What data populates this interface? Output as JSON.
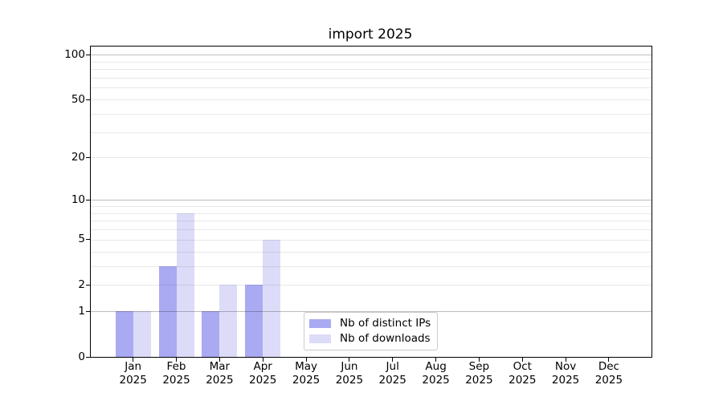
{
  "title": "import 2025",
  "colors": {
    "distinct_ips_bar": "#aaaaf2",
    "downloads_bar": "#dcdcf8",
    "major_gridline": "#bdbdbd",
    "minor_gridline": "#e8e8e8",
    "axis_line": "#000000",
    "legend_border": "#cccccc",
    "background": "#ffffff"
  },
  "legend": {
    "items": [
      {
        "label": "Nb of distinct IPs"
      },
      {
        "label": "Nb of downloads"
      }
    ]
  },
  "chart_data": {
    "type": "bar",
    "title": "import 2025",
    "categories": [
      "Jan 2025",
      "Feb 2025",
      "Mar 2025",
      "Apr 2025",
      "May 2025",
      "Jun 2025",
      "Jul 2025",
      "Aug 2025",
      "Sep 2025",
      "Oct 2025",
      "Nov 2025",
      "Dec 2025"
    ],
    "x_axis": {
      "months": [
        "Jan",
        "Feb",
        "Mar",
        "Apr",
        "May",
        "Jun",
        "Jul",
        "Aug",
        "Sep",
        "Oct",
        "Nov",
        "Dec"
      ],
      "year": "2025"
    },
    "series": [
      {
        "name": "Nb of distinct IPs",
        "color": "#aaaaf2",
        "values": [
          1,
          3,
          1,
          2,
          0,
          0,
          0,
          0,
          0,
          0,
          0,
          0
        ]
      },
      {
        "name": "Nb of downloads",
        "color": "#dcdcf8",
        "values": [
          1,
          8,
          2,
          5,
          0,
          0,
          0,
          0,
          0,
          0,
          0,
          0
        ]
      }
    ],
    "y_axis": {
      "scale": "log1p",
      "ticks": [
        0,
        1,
        2,
        5,
        10,
        20,
        50,
        100
      ],
      "major_gridlines": [
        1,
        10,
        100
      ],
      "minor_gridlines": [
        2,
        3,
        4,
        5,
        6,
        7,
        8,
        9,
        20,
        30,
        40,
        50,
        60,
        70,
        80,
        90
      ],
      "ylim": [
        0,
        116
      ]
    },
    "grid": true,
    "legend_position": "lower right inside"
  }
}
